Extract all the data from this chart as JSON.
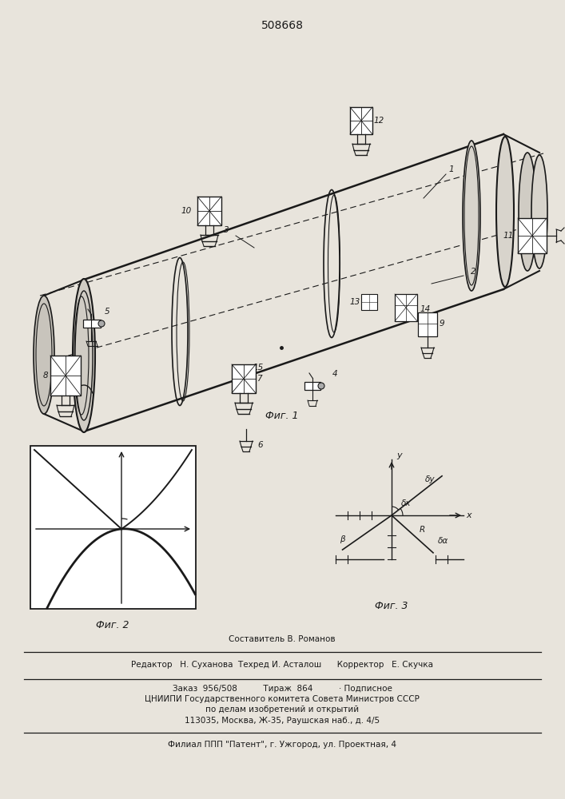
{
  "patent_number": "508668",
  "fig1_caption": "Фиг. 1",
  "fig2_caption": "Фиг. 2",
  "fig3_caption": "Фиг. 3",
  "footer_line1": "Составитель В. Романов",
  "footer_line2": "Редактор   Н. Суханова  Техред И. Асталош     Корректор   Е. Скучка",
  "footer_line3": "Заказ  956/508        Тираж  864        ·Подписное",
  "footer_line4": "ЦНИИПИ Государственного комитета Совета Министров СССР",
  "footer_line5": "по делам изобретений и открытий",
  "footer_line6": "113035, Москва, Ж-35, Раушская наб., д. 4/5",
  "footer_line7": "Филиал ППП \"Патент\", г. Ужгород, ул. Проектная, 4",
  "bg_color": "#e8e4dc",
  "line_color": "#1a1a1a",
  "text_color": "#1a1a1a"
}
